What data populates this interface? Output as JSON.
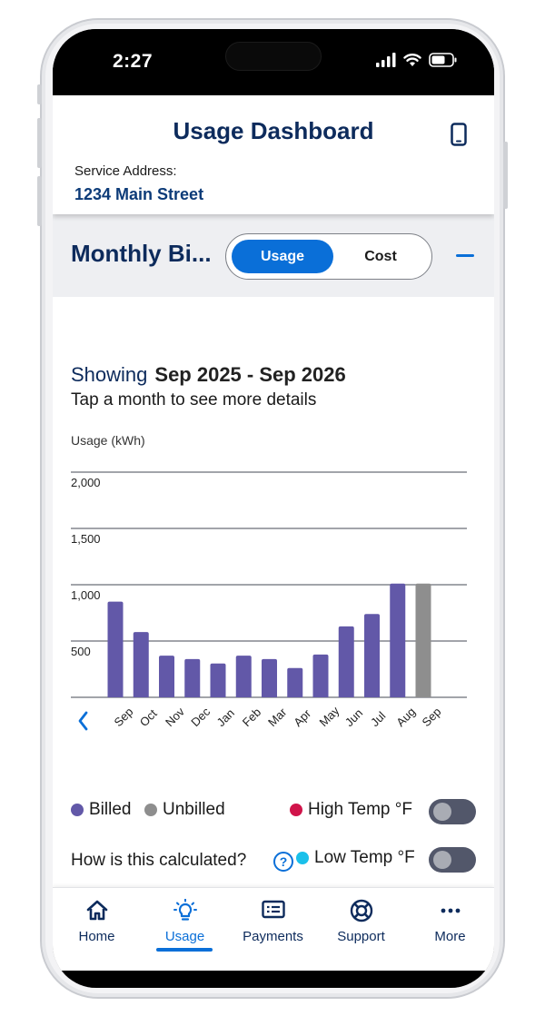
{
  "status_bar": {
    "time": "2:27"
  },
  "header": {
    "title": "Usage Dashboard",
    "address_label": "Service Address:",
    "address": "1234 Main Street"
  },
  "section": {
    "title": "Monthly Bi...",
    "toggle": {
      "usage_label": "Usage",
      "cost_label": "Cost",
      "selected": "Usage"
    }
  },
  "range": {
    "prefix": "Showing",
    "value": "Sep 2025 - Sep 2026",
    "hint": "Tap a month to see more details"
  },
  "chart_data": {
    "type": "bar",
    "ylabel": "Usage (kWh)",
    "ylim": [
      0,
      2000
    ],
    "yticks": [
      "500",
      "1,000",
      "1,500",
      "2,000"
    ],
    "categories": [
      "Sep",
      "Oct",
      "Nov",
      "Dec",
      "Jan",
      "Feb",
      "Mar",
      "Apr",
      "May",
      "Jun",
      "Jul",
      "Aug",
      "Sep"
    ],
    "series": [
      {
        "name": "Billed",
        "values": [
          850,
          580,
          370,
          340,
          300,
          370,
          340,
          260,
          380,
          630,
          740,
          1010,
          null
        ]
      },
      {
        "name": "Unbilled",
        "values": [
          null,
          null,
          null,
          null,
          null,
          null,
          null,
          null,
          null,
          null,
          null,
          null,
          1010
        ]
      }
    ],
    "colors": {
      "billed": "#6258a8",
      "unbilled": "#8e8e8e",
      "gridline": "#6b6e78"
    },
    "grid": true
  },
  "legend": {
    "billed": "Billed",
    "unbilled": "Unbilled",
    "high_temp": "High Temp °F",
    "low_temp": "Low Temp °F",
    "colors": {
      "billed": "#6258a8",
      "unbilled": "#8e8e8e",
      "high_temp": "#d0144a",
      "low_temp": "#1ac0ea"
    }
  },
  "toggles": {
    "high_temp_on": false,
    "low_temp_on": false
  },
  "calc_link": "How is this calculated?",
  "nav": {
    "items": [
      {
        "label": "Home",
        "icon": "home-icon"
      },
      {
        "label": "Usage",
        "icon": "lightbulb-icon"
      },
      {
        "label": "Payments",
        "icon": "payments-icon"
      },
      {
        "label": "Support",
        "icon": "lifebuoy-icon"
      },
      {
        "label": "More",
        "icon": "more-icon"
      }
    ],
    "active": "Usage"
  }
}
